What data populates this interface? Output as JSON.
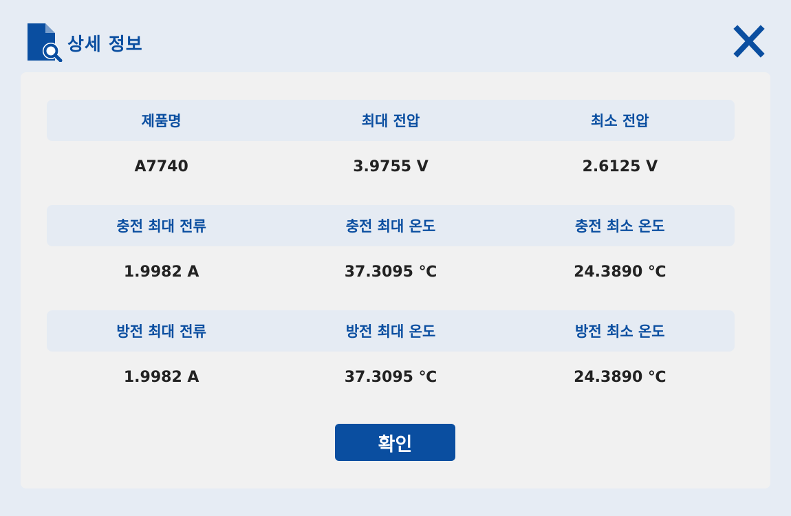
{
  "dialog": {
    "title": "상세 정보",
    "icon": "document-search-icon",
    "close_icon": "close-icon",
    "accent_color": "#0a4ea0"
  },
  "groups": [
    {
      "labels": [
        "제품명",
        "최대 전압",
        "최소 전압"
      ],
      "values": [
        "A7740",
        "3.9755 V",
        "2.6125 V"
      ]
    },
    {
      "labels": [
        "충전 최대 전류",
        "충전 최대 온도",
        "충전 최소 온도"
      ],
      "values": [
        "1.9982 A",
        "37.3095 ℃",
        "24.3890 ℃"
      ]
    },
    {
      "labels": [
        "방전 최대 전류",
        "방전 최대 온도",
        "방전 최소 온도"
      ],
      "values": [
        "1.9982 A",
        "37.3095 ℃",
        "24.3890 ℃"
      ]
    }
  ],
  "footer": {
    "confirm_label": "확인"
  }
}
